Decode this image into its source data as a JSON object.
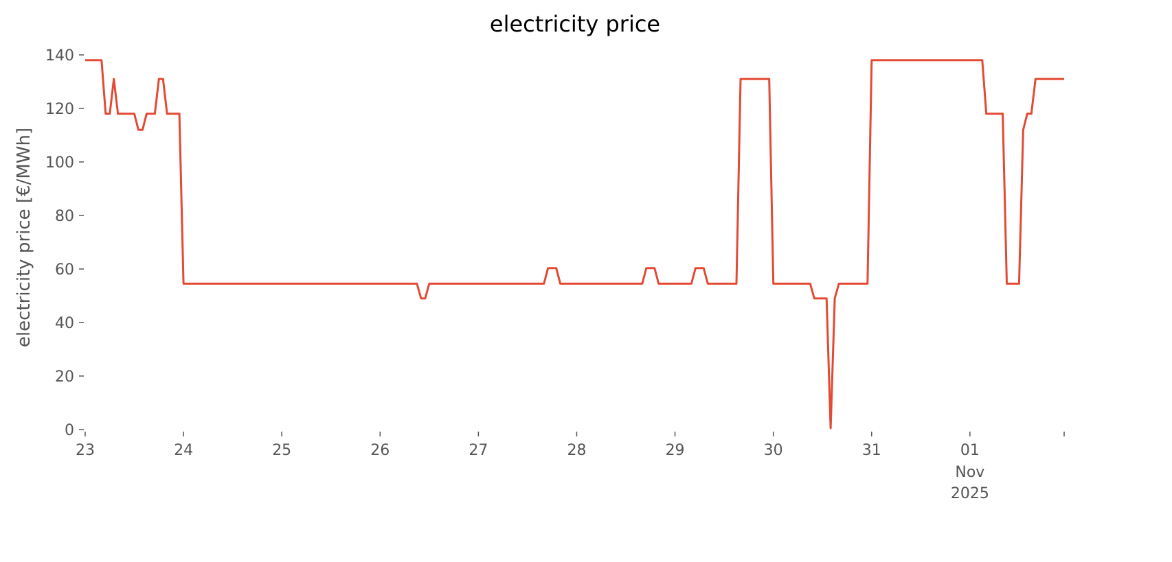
{
  "chart_data": {
    "type": "line",
    "title": "electricity price",
    "xlabel": "",
    "ylabel": "electricity price [€/MWh]",
    "ylim": [
      0,
      141
    ],
    "xlim": [
      "2025-10-23T00:00",
      "2025-11-01T23:00"
    ],
    "grid": false,
    "line_color": "#E24A33",
    "yticks": [
      0,
      20,
      40,
      60,
      80,
      100,
      120,
      140
    ],
    "xticks": [
      {
        "date": "2025-10-23",
        "label": "23"
      },
      {
        "date": "2025-10-24",
        "label": "24"
      },
      {
        "date": "2025-10-25",
        "label": "25"
      },
      {
        "date": "2025-10-26",
        "label": "26"
      },
      {
        "date": "2025-10-27",
        "label": "27"
      },
      {
        "date": "2025-10-28",
        "label": "28"
      },
      {
        "date": "2025-10-29",
        "label": "29"
      },
      {
        "date": "2025-10-30",
        "label": "30"
      },
      {
        "date": "2025-10-31",
        "label": "31"
      },
      {
        "date": "2025-11-01",
        "label": "01",
        "sub": [
          "Nov",
          "2025"
        ]
      },
      {
        "date": "2025-11-01T23:00",
        "label": ""
      }
    ],
    "series": [
      {
        "points": [
          [
            "2025-10-23T00:00",
            138
          ],
          [
            "2025-10-23T04:00",
            138
          ],
          [
            "2025-10-23T05:00",
            118
          ],
          [
            "2025-10-23T06:00",
            118
          ],
          [
            "2025-10-23T07:00",
            131
          ],
          [
            "2025-10-23T08:00",
            118
          ],
          [
            "2025-10-23T12:00",
            118
          ],
          [
            "2025-10-23T13:00",
            112
          ],
          [
            "2025-10-23T14:00",
            112
          ],
          [
            "2025-10-23T15:00",
            118
          ],
          [
            "2025-10-23T17:00",
            118
          ],
          [
            "2025-10-23T18:00",
            131
          ],
          [
            "2025-10-23T19:00",
            131
          ],
          [
            "2025-10-23T20:00",
            118
          ],
          [
            "2025-10-23T23:00",
            118
          ],
          [
            "2025-10-24T00:00",
            54.5
          ],
          [
            "2025-10-26T09:00",
            54.5
          ],
          [
            "2025-10-26T10:00",
            49
          ],
          [
            "2025-10-26T11:00",
            49
          ],
          [
            "2025-10-26T12:00",
            54.5
          ],
          [
            "2025-10-27T16:00",
            54.5
          ],
          [
            "2025-10-27T17:00",
            60.3
          ],
          [
            "2025-10-27T19:00",
            60.3
          ],
          [
            "2025-10-27T20:00",
            54.5
          ],
          [
            "2025-10-28T16:00",
            54.5
          ],
          [
            "2025-10-28T17:00",
            60.3
          ],
          [
            "2025-10-28T19:00",
            60.3
          ],
          [
            "2025-10-28T20:00",
            54.5
          ],
          [
            "2025-10-29T04:00",
            54.5
          ],
          [
            "2025-10-29T05:00",
            60.3
          ],
          [
            "2025-10-29T07:00",
            60.3
          ],
          [
            "2025-10-29T08:00",
            54.5
          ],
          [
            "2025-10-29T15:00",
            54.5
          ],
          [
            "2025-10-29T16:00",
            131
          ],
          [
            "2025-10-29T23:00",
            131
          ],
          [
            "2025-10-30T00:00",
            54.5
          ],
          [
            "2025-10-30T09:00",
            54.5
          ],
          [
            "2025-10-30T10:00",
            49
          ],
          [
            "2025-10-30T13:00",
            49
          ],
          [
            "2025-10-30T14:00",
            0.5
          ],
          [
            "2025-10-30T15:00",
            49
          ],
          [
            "2025-10-30T16:00",
            54.5
          ],
          [
            "2025-10-30T23:00",
            54.5
          ],
          [
            "2025-10-31T00:00",
            138
          ],
          [
            "2025-11-01T03:00",
            138
          ],
          [
            "2025-11-01T04:00",
            118
          ],
          [
            "2025-11-01T08:00",
            118
          ],
          [
            "2025-11-01T09:00",
            54.5
          ],
          [
            "2025-11-01T12:00",
            54.5
          ],
          [
            "2025-11-01T13:00",
            112
          ],
          [
            "2025-11-01T14:00",
            118
          ],
          [
            "2025-11-01T15:00",
            118
          ],
          [
            "2025-11-01T16:00",
            131
          ],
          [
            "2025-11-01T23:00",
            131
          ]
        ]
      }
    ]
  }
}
